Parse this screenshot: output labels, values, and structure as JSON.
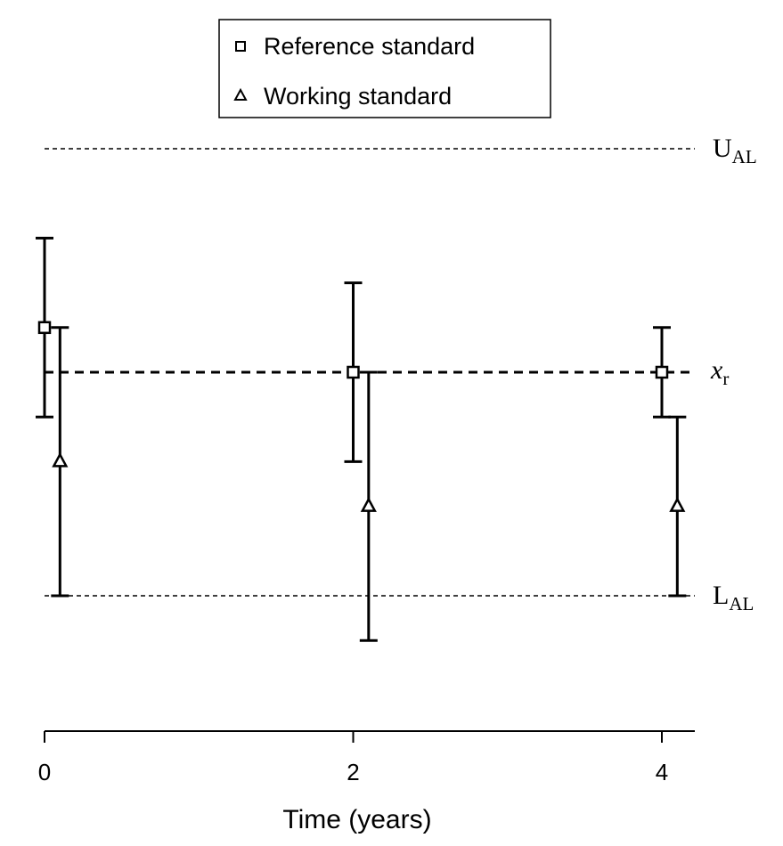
{
  "chart_data": {
    "type": "scatter",
    "title": "",
    "xlabel": "Time (years)",
    "ylabel": "",
    "xlim": [
      0,
      4.2
    ],
    "ylim": [
      -3.0,
      2.5
    ],
    "x_ticks": [
      {
        "value": 0,
        "label": "0"
      },
      {
        "value": 2,
        "label": "2"
      },
      {
        "value": 4,
        "label": "4"
      }
    ],
    "grid": false,
    "legend": {
      "placement": "top-center",
      "entries": [
        {
          "name": "Reference standard",
          "marker": "square"
        },
        {
          "name": "Working standard",
          "marker": "triangle"
        }
      ]
    },
    "series": [
      {
        "name": "Reference standard",
        "marker": "square",
        "points": [
          {
            "x": 0,
            "y": 0.5,
            "low": -0.5,
            "high": 1.5
          },
          {
            "x": 2,
            "y": 0.0,
            "low": -1.0,
            "high": 1.0
          },
          {
            "x": 4,
            "y": 0.0,
            "low": -0.5,
            "high": 0.5
          }
        ]
      },
      {
        "name": "Working standard",
        "marker": "triangle",
        "points": [
          {
            "x": 0.1,
            "y": -1.0,
            "low": -2.5,
            "high": 0.5
          },
          {
            "x": 2.1,
            "y": -1.5,
            "low": -3.0,
            "high": 0.0
          },
          {
            "x": 4.1,
            "y": -1.5,
            "low": -2.5,
            "high": -0.5
          }
        ]
      }
    ],
    "reference_lines": [
      {
        "id": "ual",
        "y": 2.5,
        "label_main": "U",
        "label_sub": "AL",
        "style": "thin-dashed"
      },
      {
        "id": "xr",
        "y": 0.0,
        "label_main": "x",
        "label_sub": "r",
        "style": "thick-dashed"
      },
      {
        "id": "lal",
        "y": -2.5,
        "label_main": "L",
        "label_sub": "AL",
        "style": "thin-dashed"
      }
    ]
  }
}
